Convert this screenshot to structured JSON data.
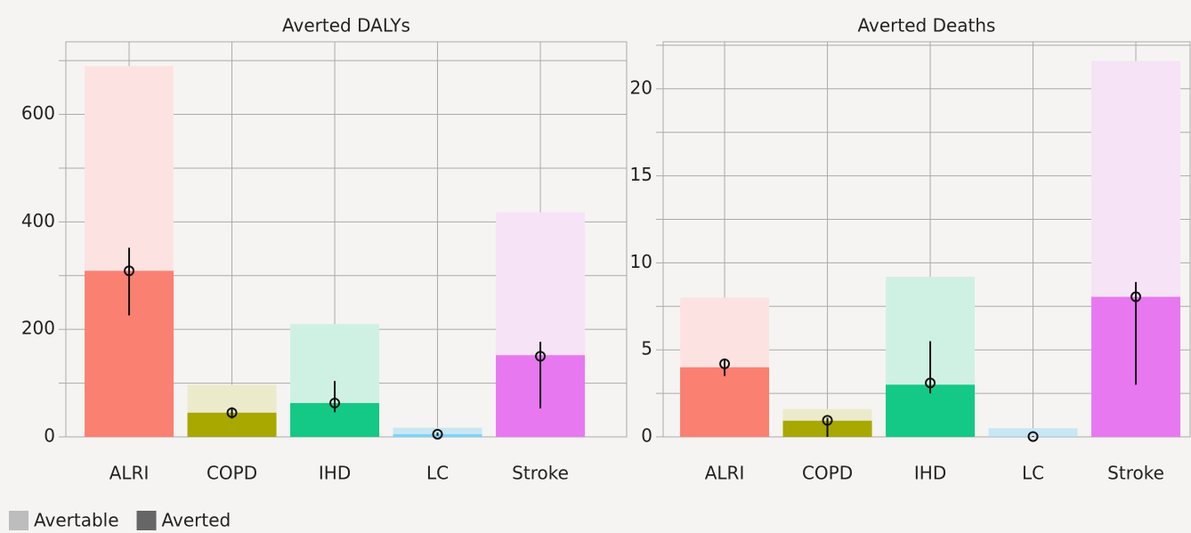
{
  "chart_data": [
    {
      "type": "bar",
      "title": "Averted DALYs",
      "categories": [
        "ALRI",
        "COPD",
        "IHD",
        "LC",
        "Stroke"
      ],
      "bar_colors": {
        "light": [
          "#fce3e1",
          "#ebebcc",
          "#cff1e3",
          "#c8e7f3",
          "#f6e3f6"
        ],
        "dark": [
          "#fa8072",
          "#a8a800",
          "#14c886",
          "#7dd3fa",
          "#e878f0"
        ]
      },
      "series": [
        {
          "name": "Avertable",
          "color": "#bdbdbd",
          "values": [
            690,
            97,
            210,
            17,
            418
          ]
        },
        {
          "name": "Averted",
          "color": "#666666",
          "values": [
            309,
            45,
            63,
            5,
            152
          ],
          "points": [
            309,
            45,
            63,
            5,
            150
          ],
          "error_low": [
            226,
            34,
            46,
            2,
            53
          ],
          "error_high": [
            352,
            55,
            104,
            8,
            177
          ]
        }
      ],
      "ylim": [
        0,
        735
      ],
      "yticks": [
        0,
        200,
        400,
        600
      ],
      "minor_yticks": [
        100,
        300,
        500,
        700
      ],
      "grid": true
    },
    {
      "type": "bar",
      "title": "Averted Deaths",
      "categories": [
        "ALRI",
        "COPD",
        "IHD",
        "LC",
        "Stroke"
      ],
      "bar_colors": {
        "light": [
          "#fce3e1",
          "#ebebcc",
          "#cff1e3",
          "#c8e7f3",
          "#f6e3f6"
        ],
        "dark": [
          "#fa8072",
          "#a8a800",
          "#14c886",
          "#7dd3fa",
          "#e878f0"
        ]
      },
      "series": [
        {
          "name": "Avertable",
          "color": "#bdbdbd",
          "values": [
            8.0,
            1.6,
            9.2,
            0.5,
            21.6
          ]
        },
        {
          "name": "Averted",
          "color": "#666666",
          "values": [
            4.0,
            0.93,
            3.0,
            0.02,
            8.05
          ],
          "points": [
            4.2,
            0.95,
            3.1,
            0.02,
            8.05
          ],
          "error_low": [
            3.5,
            0,
            2.5,
            0,
            3.0
          ],
          "error_high": [
            4.5,
            1.1,
            5.5,
            0.05,
            8.9
          ]
        }
      ],
      "ylim": [
        0,
        22.7
      ],
      "yticks": [
        0,
        5,
        10,
        15,
        20
      ],
      "minor_yticks": [
        2.5,
        7.5,
        12.5,
        17.5,
        22.5
      ],
      "grid": true
    }
  ]
}
